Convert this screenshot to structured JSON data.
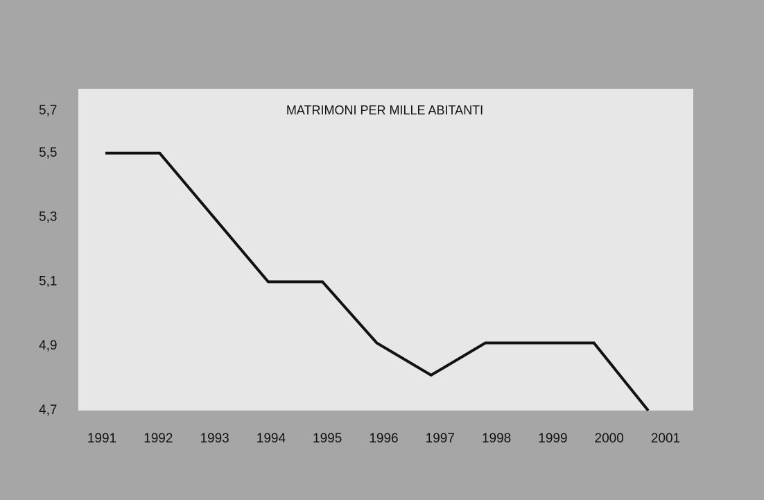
{
  "chart_data": {
    "type": "line",
    "title": "MATRIMONI PER MILLE ABITANTI",
    "categories": [
      "1991",
      "1992",
      "1993",
      "1994",
      "1995",
      "1996",
      "1997",
      "1998",
      "1999",
      "2000",
      "2001"
    ],
    "values": [
      5.5,
      5.5,
      5.3,
      5.1,
      5.1,
      4.91,
      4.81,
      4.91,
      4.91,
      4.91,
      4.7
    ],
    "color": "#111111",
    "ylim": [
      4.7,
      5.7
    ],
    "yticks": [
      {
        "value": 5.7,
        "label": "5,7"
      },
      {
        "value": 5.5,
        "label": "5,5"
      },
      {
        "value": 5.3,
        "label": "5,3"
      },
      {
        "value": 5.1,
        "label": "5,1"
      },
      {
        "value": 4.9,
        "label": "4,9"
      },
      {
        "value": 4.7,
        "label": "4,7"
      }
    ],
    "grid": false
  }
}
